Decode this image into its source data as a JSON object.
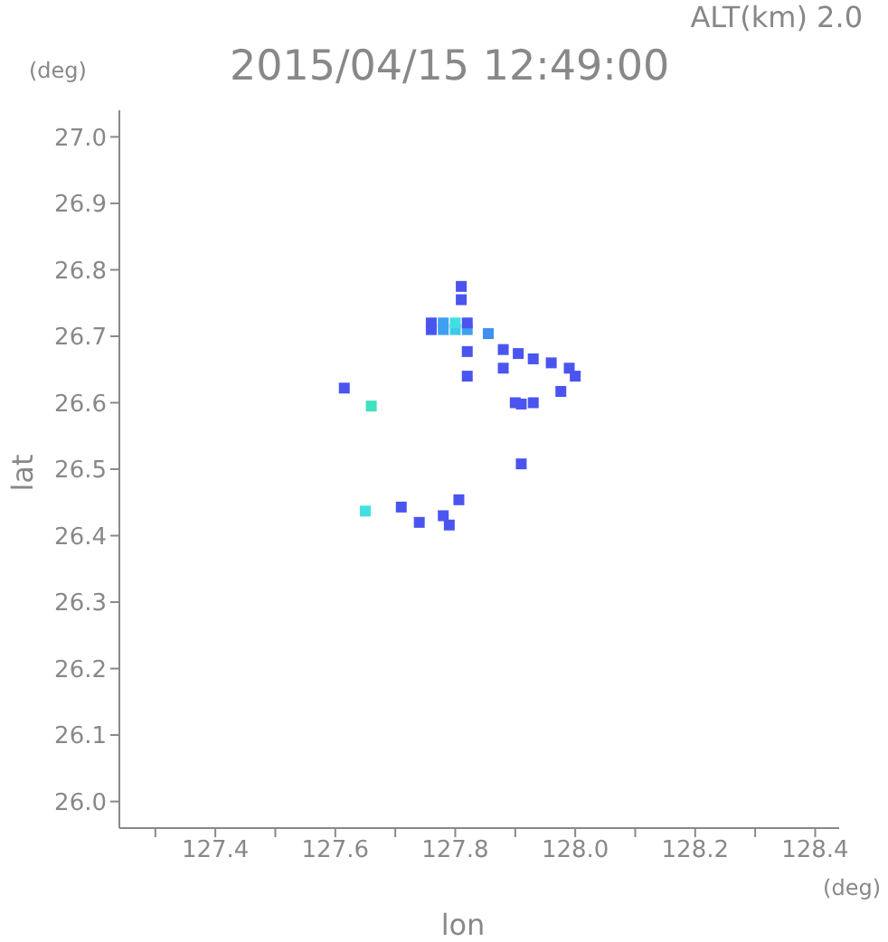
{
  "chart_data": {
    "type": "scatter",
    "title": "2015/04/15 12:49:00",
    "subtitle": "ALT(km) 2.0",
    "xlabel": "lon",
    "ylabel": "lat",
    "annotations": [
      "(deg)",
      "(deg)"
    ],
    "x": [
      127.76,
      127.78,
      127.8,
      127.82,
      127.76,
      127.78,
      127.8,
      127.82,
      127.81,
      127.81,
      127.855,
      127.88,
      127.82,
      127.905,
      127.82,
      127.88,
      127.93,
      127.96,
      127.99,
      128.0,
      127.976,
      127.9,
      127.91,
      127.93,
      127.615,
      127.66,
      127.91,
      127.65,
      127.74,
      127.78,
      127.79,
      127.806,
      127.71
    ],
    "values": [
      26.71,
      26.71,
      26.71,
      26.71,
      26.72,
      26.72,
      26.72,
      26.72,
      26.755,
      26.775,
      26.704,
      26.68,
      26.677,
      26.674,
      26.64,
      26.652,
      26.666,
      26.66,
      26.652,
      26.64,
      26.617,
      26.6,
      26.598,
      26.6,
      26.622,
      26.595,
      26.508,
      26.437,
      26.42,
      26.43,
      26.416,
      26.454,
      26.443
    ],
    "colors": [
      "#4a55f0",
      "#3fa0f0",
      "#40c8e8",
      "#3fa0f0",
      "#4a55f0",
      "#3fa0f0",
      "#40e0e0",
      "#4a55f0",
      "#4a55f0",
      "#4a55f0",
      "#3f90f0",
      "#4a55f0",
      "#4a55f0",
      "#4a55f0",
      "#4a55f0",
      "#4a55f0",
      "#4a55f0",
      "#4a55f0",
      "#4a55f0",
      "#4a55f0",
      "#4a55f0",
      "#4a55f0",
      "#4a55f0",
      "#4a55f0",
      "#4a55f0",
      "#40e0c0",
      "#4a55f0",
      "#40e0e0",
      "#4a55f0",
      "#4a55f0",
      "#4a55f0",
      "#4a55f0",
      "#4a55f0"
    ],
    "marker": "square",
    "legend": false,
    "grid": false,
    "xlim": [
      127.24,
      128.44
    ],
    "ylim": [
      25.96,
      27.04
    ],
    "xticks": [
      {
        "value": 127.3,
        "label": null
      },
      127.4,
      {
        "value": 127.5,
        "label": null
      },
      127.6,
      {
        "value": 127.7,
        "label": null
      },
      127.8,
      {
        "value": 127.9,
        "label": null
      },
      {
        "value": 128,
        "label": "128.0"
      },
      {
        "value": 128.1,
        "label": null
      },
      128.2,
      {
        "value": 128.3,
        "label": null
      },
      128.4
    ],
    "yticks": [
      {
        "value": 26,
        "label": "26.0"
      },
      26.1,
      26.2,
      26.3,
      26.4,
      26.5,
      26.6,
      26.7,
      26.8,
      26.9,
      {
        "value": 27,
        "label": "27.0"
      }
    ]
  }
}
